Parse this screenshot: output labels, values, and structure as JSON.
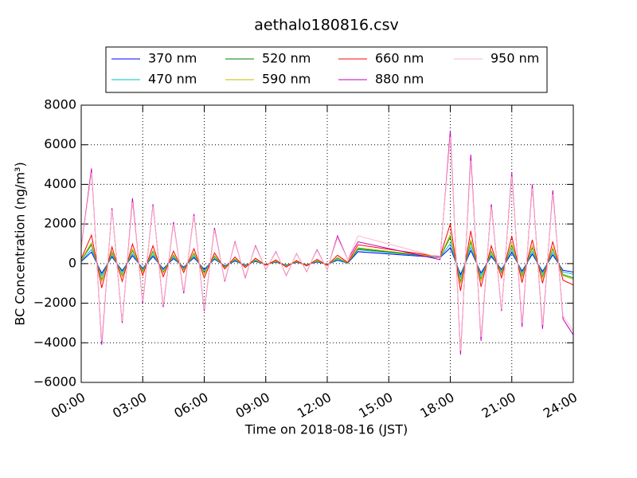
{
  "chart_data": {
    "type": "line",
    "title": "aethalo180816.csv",
    "x_label": "Time on 2018-08-16 (JST)",
    "y_label": "BC Concentration (ng/m³)",
    "xlim": [
      0,
      24
    ],
    "ylim": [
      -6000,
      8000
    ],
    "xticks": [
      {
        "value": 0,
        "label": "00:00"
      },
      {
        "value": 3,
        "label": "03:00"
      },
      {
        "value": 6,
        "label": "06:00"
      },
      {
        "value": 9,
        "label": "09:00"
      },
      {
        "value": 12,
        "label": "12:00"
      },
      {
        "value": 15,
        "label": "15:00"
      },
      {
        "value": 18,
        "label": "18:00"
      },
      {
        "value": 21,
        "label": "21:00"
      },
      {
        "value": 24,
        "label": "24:00"
      }
    ],
    "yticks": [
      {
        "value": -6000,
        "label": "−6000"
      },
      {
        "value": -4000,
        "label": "−4000"
      },
      {
        "value": -2000,
        "label": "−2000"
      },
      0,
      2000,
      4000,
      6000,
      8000
    ],
    "grid": true,
    "legend": "upper center",
    "x": [
      0,
      0.5,
      1,
      1.5,
      2,
      2.5,
      3,
      3.5,
      4,
      4.5,
      5,
      5.5,
      6,
      6.5,
      7,
      7.5,
      8,
      8.5,
      9,
      9.5,
      10,
      10.5,
      11,
      11.5,
      12,
      12.5,
      13,
      13.5,
      17.5,
      18,
      18.5,
      19,
      19.5,
      20,
      20.5,
      21,
      21.5,
      22,
      22.5,
      23,
      23.5,
      24
    ],
    "series": [
      {
        "name": "370 nm",
        "color": "#0000ff",
        "values": [
          100,
          580,
          -490,
          340,
          -360,
          400,
          -240,
          360,
          -260,
          250,
          -180,
          300,
          -290,
          220,
          -110,
          130,
          -80,
          110,
          -40,
          70,
          -70,
          60,
          -50,
          80,
          -40,
          170,
          20,
          600,
          300,
          800,
          -550,
          660,
          -470,
          360,
          -290,
          550,
          -380,
          480,
          -400,
          440,
          -340,
          -430
        ]
      },
      {
        "name": "470 nm",
        "color": "#00bfbf",
        "values": [
          120,
          720,
          -620,
          420,
          -450,
          500,
          -300,
          450,
          -330,
          320,
          -230,
          380,
          -360,
          270,
          -140,
          170,
          -110,
          140,
          -50,
          90,
          -90,
          80,
          -60,
          110,
          -50,
          210,
          30,
          700,
          310,
          1000,
          -690,
          830,
          -590,
          450,
          -360,
          690,
          -480,
          600,
          -500,
          560,
          -420,
          -540
        ]
      },
      {
        "name": "520 nm",
        "color": "#008000",
        "values": [
          160,
          960,
          -820,
          560,
          -600,
          660,
          -400,
          600,
          -440,
          420,
          -300,
          500,
          -480,
          360,
          -180,
          220,
          -140,
          180,
          -60,
          120,
          -120,
          100,
          -80,
          140,
          -60,
          280,
          40,
          750,
          320,
          1340,
          -920,
          1100,
          -780,
          600,
          -480,
          920,
          -640,
          800,
          -660,
          740,
          -560,
          -720
        ]
      },
      {
        "name": "590 nm",
        "color": "#bfbf00",
        "values": [
          180,
          1060,
          -900,
          620,
          -660,
          730,
          -440,
          660,
          -480,
          460,
          -330,
          550,
          -530,
          400,
          -200,
          240,
          -150,
          200,
          -70,
          130,
          -130,
          110,
          -90,
          150,
          -70,
          310,
          40,
          800,
          330,
          1470,
          -1010,
          1210,
          -860,
          660,
          -530,
          1010,
          -700,
          880,
          -730,
          810,
          -620,
          -790
        ]
      },
      {
        "name": "660 nm",
        "color": "#ff0000",
        "values": [
          240,
          1440,
          -1230,
          840,
          -900,
          990,
          -600,
          900,
          -660,
          630,
          -450,
          750,
          -720,
          540,
          -270,
          330,
          -210,
          270,
          -90,
          180,
          -180,
          150,
          -120,
          210,
          -90,
          420,
          60,
          950,
          350,
          2000,
          -1380,
          1650,
          -1170,
          900,
          -720,
          1380,
          -960,
          1200,
          -990,
          1110,
          -840,
          -1080
        ]
      },
      {
        "name": "880 nm",
        "color": "#bf00bf",
        "values": [
          800,
          4800,
          -4100,
          2800,
          -3000,
          3300,
          -2000,
          3000,
          -2200,
          2100,
          -1500,
          2500,
          -2400,
          1800,
          -900,
          1100,
          -700,
          900,
          -300,
          600,
          -600,
          500,
          -400,
          700,
          -300,
          1400,
          200,
          1100,
          200,
          6700,
          -4600,
          5500,
          -3900,
          3000,
          -2400,
          4600,
          -3200,
          4000,
          -3300,
          3700,
          -2800,
          -3600
        ]
      },
      {
        "name": "950 nm",
        "color": "#ffb6c1",
        "values": [
          760,
          4600,
          -3900,
          2700,
          -2900,
          3100,
          -1900,
          2900,
          -2100,
          2000,
          -1400,
          2400,
          -2300,
          1700,
          -850,
          1050,
          -650,
          850,
          -280,
          570,
          -570,
          480,
          -380,
          660,
          -280,
          1300,
          190,
          1400,
          300,
          6400,
          -4400,
          5200,
          -3700,
          2850,
          -2300,
          4400,
          -3000,
          3800,
          -3100,
          3500,
          -2650,
          -3400
        ]
      }
    ]
  }
}
